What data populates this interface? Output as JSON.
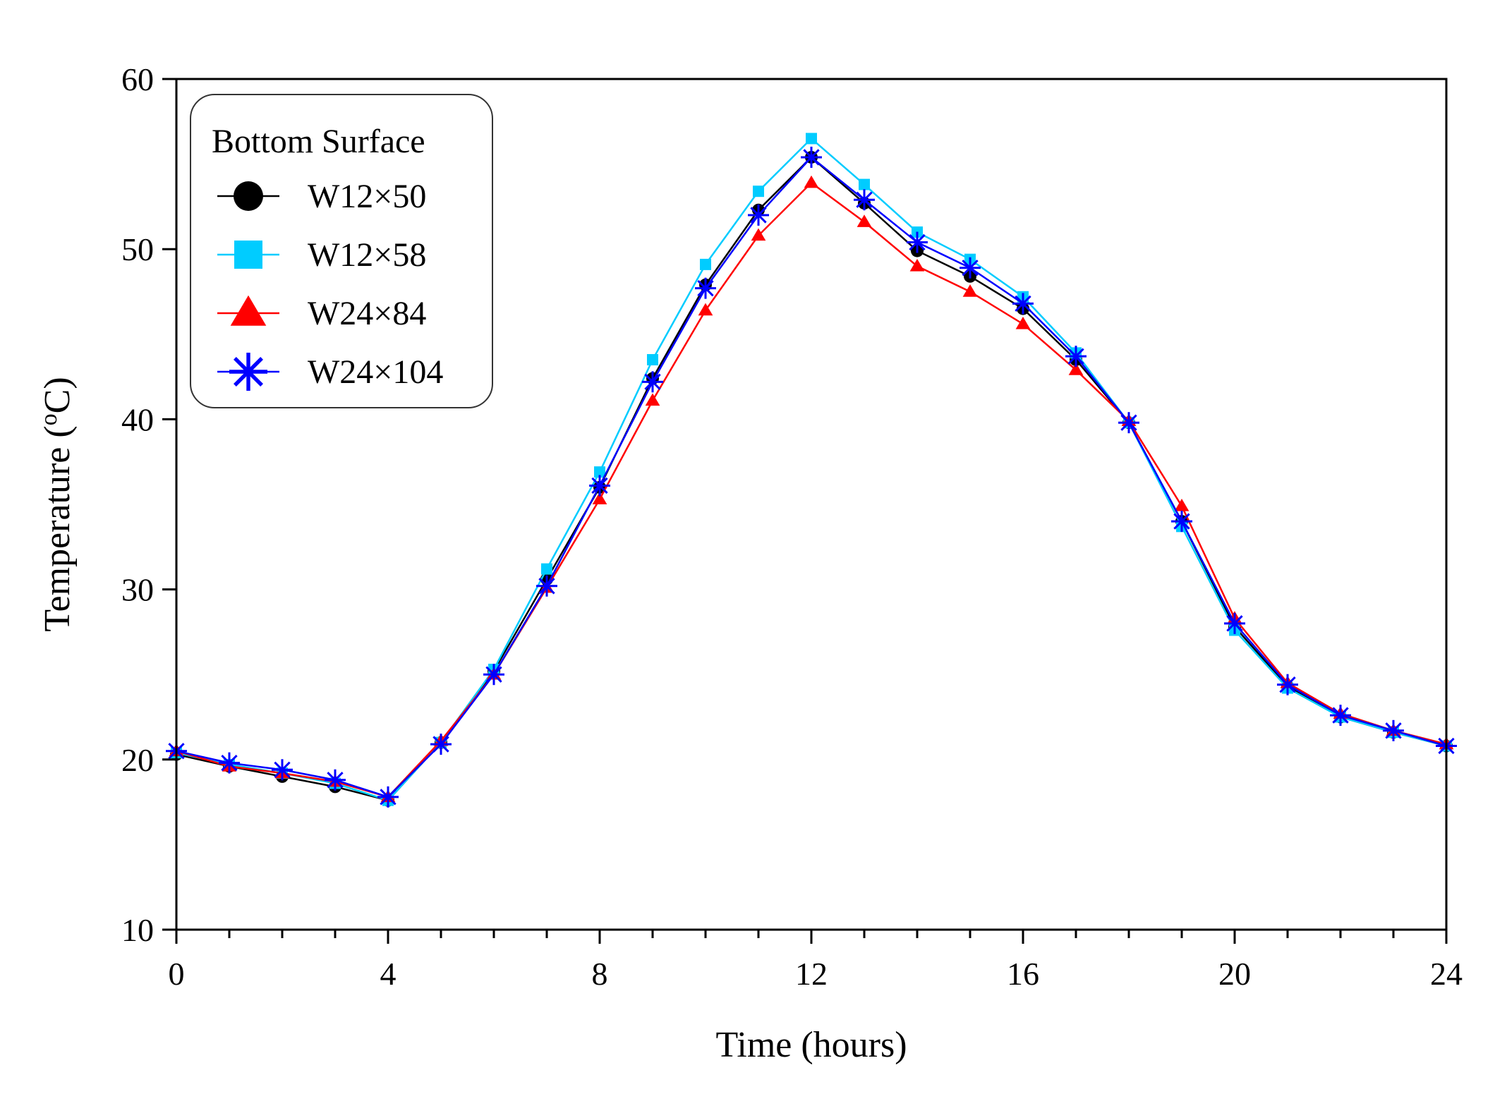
{
  "chart_data": {
    "type": "line",
    "title": "",
    "xlabel": "Time (hours)",
    "ylabel": "Temperature (",
    "ylabel_sup": "o",
    "ylabel_unit": "C)",
    "xlim": [
      0,
      24
    ],
    "ylim": [
      10,
      60
    ],
    "xticks": [
      0,
      4,
      8,
      12,
      16,
      20,
      24
    ],
    "xtick_labels": [
      "0",
      "4",
      "8",
      "12",
      "16",
      "20",
      "24"
    ],
    "yticks": [
      10,
      20,
      30,
      40,
      50,
      60
    ],
    "ytick_labels": [
      "10",
      "20",
      "30",
      "40",
      "50",
      "60"
    ],
    "grid": false,
    "legend": {
      "title": "Bottom Surface",
      "position": "top-left"
    },
    "x": [
      0,
      1,
      2,
      3,
      4,
      5,
      6,
      7,
      8,
      9,
      10,
      11,
      12,
      13,
      14,
      15,
      16,
      17,
      18,
      19,
      20,
      21,
      22,
      23,
      24
    ],
    "series": [
      {
        "name": "W12×50",
        "marker": "circle",
        "color": "#000000",
        "values": [
          20.3,
          19.6,
          19.0,
          18.4,
          17.6,
          21.0,
          25.2,
          30.6,
          36.0,
          42.4,
          47.9,
          52.3,
          55.4,
          52.7,
          49.9,
          48.4,
          46.5,
          43.5,
          39.8,
          34.0,
          27.8,
          24.3,
          22.5,
          21.6,
          20.8
        ]
      },
      {
        "name": "W12×58",
        "marker": "square",
        "color": "#00CCFF",
        "values": [
          20.4,
          19.7,
          19.2,
          18.6,
          17.6,
          21.0,
          25.3,
          31.2,
          36.9,
          43.5,
          49.1,
          53.4,
          56.5,
          53.8,
          51.0,
          49.4,
          47.2,
          43.9,
          39.8,
          33.7,
          27.6,
          24.2,
          22.5,
          21.6,
          20.8
        ]
      },
      {
        "name": "W24×84",
        "marker": "triangle",
        "color": "#FF0000",
        "values": [
          20.5,
          19.6,
          19.2,
          18.7,
          17.8,
          21.1,
          25.0,
          30.1,
          35.3,
          41.1,
          46.4,
          50.8,
          53.9,
          51.6,
          49.0,
          47.5,
          45.6,
          42.9,
          39.9,
          34.9,
          28.3,
          24.5,
          22.7,
          21.7,
          20.9
        ]
      },
      {
        "name": "W24×104",
        "marker": "asterisk",
        "color": "#0000FF",
        "values": [
          20.5,
          19.8,
          19.4,
          18.8,
          17.8,
          20.9,
          25.0,
          30.2,
          36.1,
          42.2,
          47.7,
          52.0,
          55.4,
          52.9,
          50.4,
          48.9,
          46.8,
          43.7,
          39.8,
          34.0,
          28.0,
          24.4,
          22.6,
          21.7,
          20.8
        ]
      }
    ]
  }
}
